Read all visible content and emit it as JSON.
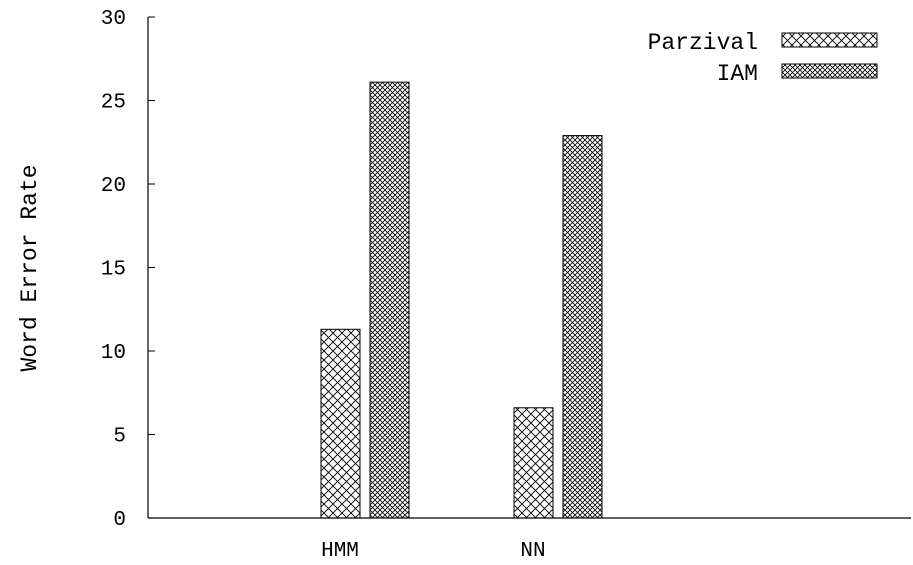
{
  "chart_data": {
    "type": "bar",
    "title": "",
    "xlabel": "",
    "ylabel": "Word Error Rate",
    "categories": [
      "HMM",
      "NN"
    ],
    "series": [
      {
        "name": "Parzival",
        "values": [
          11.3,
          6.6
        ],
        "pattern": "crosshatch"
      },
      {
        "name": "IAM",
        "values": [
          26.1,
          22.9
        ],
        "pattern": "dense-crosshatch"
      }
    ],
    "ylim": [
      0,
      30
    ],
    "yticks": [
      0,
      5,
      10,
      15,
      20,
      25,
      30
    ],
    "grid": false,
    "legend_position": "top-right"
  }
}
